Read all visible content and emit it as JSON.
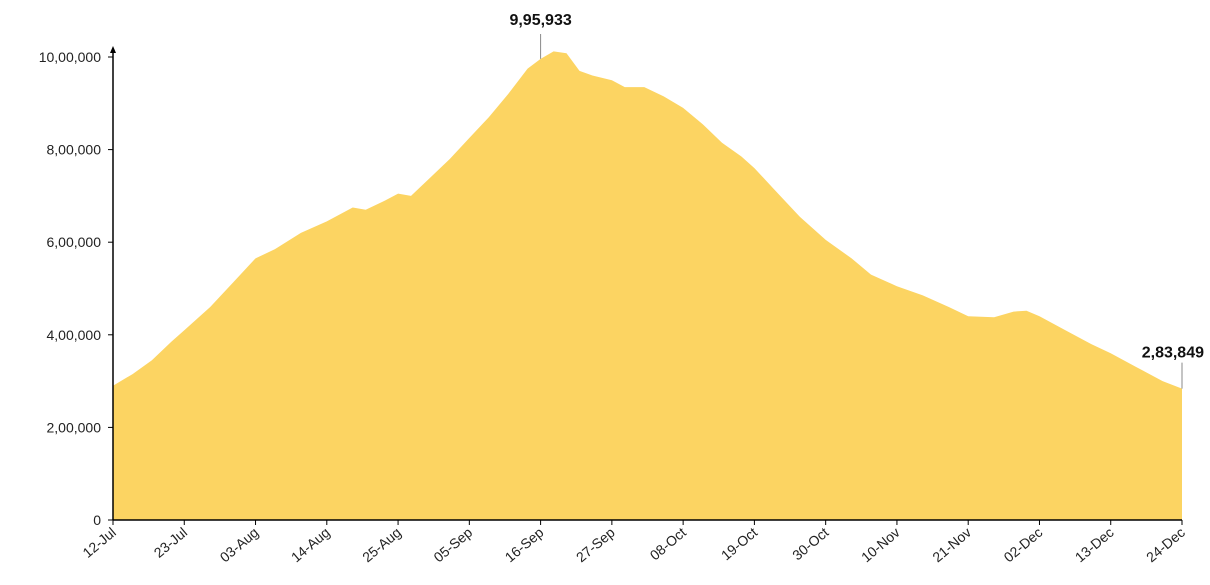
{
  "chart_data": {
    "type": "area",
    "ylim": [
      0,
      1000000
    ],
    "y_ticks": [
      {
        "value": 0,
        "label": "0"
      },
      {
        "value": 200000,
        "label": "2,00,000"
      },
      {
        "value": 400000,
        "label": "4,00,000"
      },
      {
        "value": 600000,
        "label": "6,00,000"
      },
      {
        "value": 800000,
        "label": "8,00,000"
      },
      {
        "value": 1000000,
        "label": "10,00,000"
      }
    ],
    "x_ticks": [
      "12-Jul",
      "23-Jul",
      "03-Aug",
      "14-Aug",
      "25-Aug",
      "05-Sep",
      "16-Sep",
      "27-Sep",
      "08-Oct",
      "19-Oct",
      "30-Oct",
      "10-Nov",
      "21-Nov",
      "02-Dec",
      "13-Dec",
      "24-Dec"
    ],
    "x_tick_spacing_days": 11,
    "series": [
      {
        "color": "#FCD462",
        "values": [
          {
            "x": "12-Jul",
            "y": 290000
          },
          {
            "x": "15-Jul",
            "y": 315000
          },
          {
            "x": "18-Jul",
            "y": 345000
          },
          {
            "x": "21-Jul",
            "y": 385000
          },
          {
            "x": "23-Jul",
            "y": 410000
          },
          {
            "x": "27-Jul",
            "y": 460000
          },
          {
            "x": "31-Jul",
            "y": 520000
          },
          {
            "x": "03-Aug",
            "y": 565000
          },
          {
            "x": "06-Aug",
            "y": 585000
          },
          {
            "x": "10-Aug",
            "y": 620000
          },
          {
            "x": "14-Aug",
            "y": 645000
          },
          {
            "x": "18-Aug",
            "y": 675000
          },
          {
            "x": "20-Aug",
            "y": 670000
          },
          {
            "x": "23-Aug",
            "y": 690000
          },
          {
            "x": "25-Aug",
            "y": 705000
          },
          {
            "x": "27-Aug",
            "y": 700000
          },
          {
            "x": "30-Aug",
            "y": 740000
          },
          {
            "x": "02-Sep",
            "y": 780000
          },
          {
            "x": "05-Sep",
            "y": 825000
          },
          {
            "x": "08-Sep",
            "y": 870000
          },
          {
            "x": "11-Sep",
            "y": 920000
          },
          {
            "x": "14-Sep",
            "y": 975000
          },
          {
            "x": "16-Sep",
            "y": 995933
          },
          {
            "x": "18-Sep",
            "y": 1012000
          },
          {
            "x": "20-Sep",
            "y": 1008000
          },
          {
            "x": "22-Sep",
            "y": 970000
          },
          {
            "x": "24-Sep",
            "y": 960000
          },
          {
            "x": "27-Sep",
            "y": 950000
          },
          {
            "x": "29-Sep",
            "y": 935000
          },
          {
            "x": "02-Oct",
            "y": 935000
          },
          {
            "x": "05-Oct",
            "y": 915000
          },
          {
            "x": "08-Oct",
            "y": 890000
          },
          {
            "x": "11-Oct",
            "y": 855000
          },
          {
            "x": "14-Oct",
            "y": 815000
          },
          {
            "x": "17-Oct",
            "y": 785000
          },
          {
            "x": "19-Oct",
            "y": 760000
          },
          {
            "x": "22-Oct",
            "y": 715000
          },
          {
            "x": "26-Oct",
            "y": 655000
          },
          {
            "x": "30-Oct",
            "y": 605000
          },
          {
            "x": "03-Nov",
            "y": 565000
          },
          {
            "x": "06-Nov",
            "y": 530000
          },
          {
            "x": "10-Nov",
            "y": 505000
          },
          {
            "x": "14-Nov",
            "y": 485000
          },
          {
            "x": "18-Nov",
            "y": 460000
          },
          {
            "x": "21-Nov",
            "y": 440000
          },
          {
            "x": "25-Nov",
            "y": 438000
          },
          {
            "x": "28-Nov",
            "y": 450000
          },
          {
            "x": "30-Nov",
            "y": 452000
          },
          {
            "x": "02-Dec",
            "y": 440000
          },
          {
            "x": "06-Dec",
            "y": 410000
          },
          {
            "x": "10-Dec",
            "y": 380000
          },
          {
            "x": "13-Dec",
            "y": 360000
          },
          {
            "x": "17-Dec",
            "y": 330000
          },
          {
            "x": "21-Dec",
            "y": 300000
          },
          {
            "x": "24-Dec",
            "y": 283849
          }
        ]
      }
    ],
    "annotations": [
      {
        "x": "16-Sep",
        "y": 995933,
        "label": "9,95,933"
      },
      {
        "x": "24-Dec",
        "y": 283849,
        "label": "2,83,849"
      }
    ]
  }
}
